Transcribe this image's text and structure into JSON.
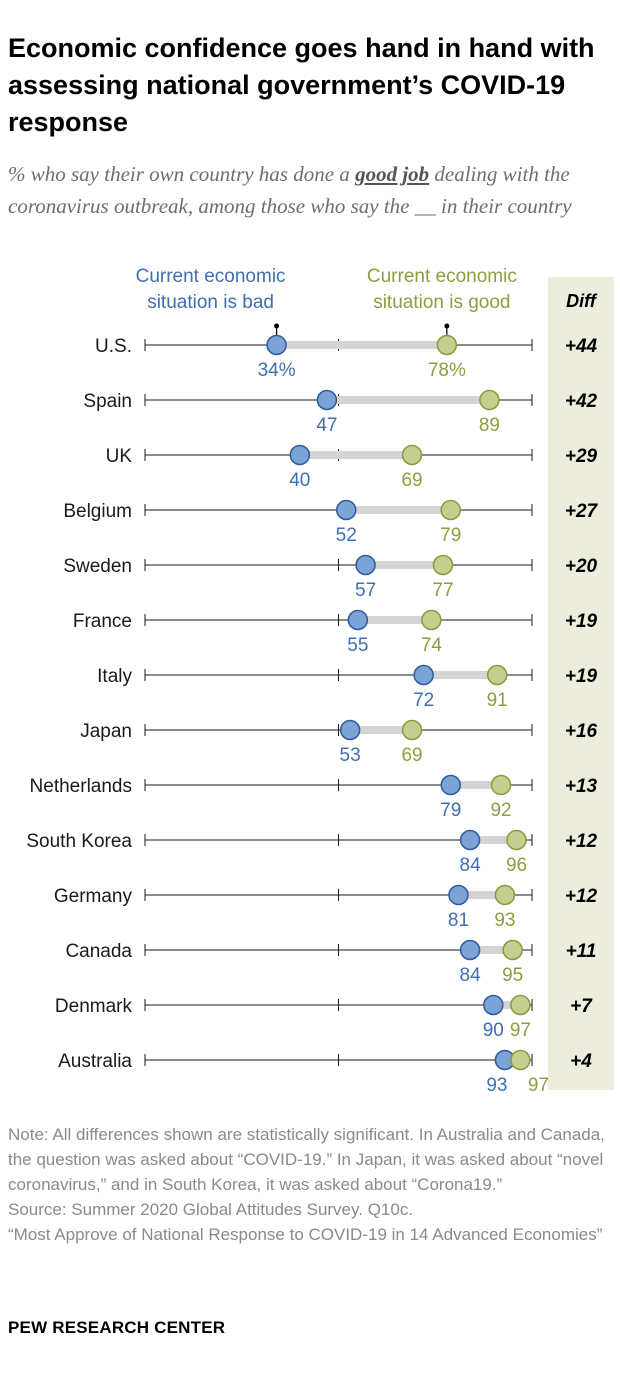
{
  "title": "Economic confidence goes hand in hand with assessing national government’s COVID-19 response",
  "subtitle": {
    "before": "% who say their own country has done a ",
    "emphasis": "good job",
    "after": " dealing with the coronavirus outbreak, among those who say the __ in their country"
  },
  "chart_data": {
    "type": "dot",
    "xlim": [
      0,
      100
    ],
    "grid": true,
    "legend_position": "top",
    "colors": {
      "bad": "#7ba3d6",
      "bad_stroke": "#2e5a9c",
      "good": "#c3cf8e",
      "good_stroke": "#8b9a3c",
      "connector": "#d4d4d4",
      "diff_bg": "#ededde"
    },
    "series": [
      {
        "name": "Current economic situation is bad",
        "legend_lines": [
          "Current economic",
          "situation is bad"
        ],
        "label_color": "#3f6fb0"
      },
      {
        "name": "Current economic situation is good",
        "legend_lines": [
          "Current economic",
          "situation is good"
        ],
        "label_color": "#8f9d3f"
      }
    ],
    "diff_header": "Diff",
    "first_row_suffix": "%",
    "rows": [
      {
        "country": "U.S.",
        "bad": 34,
        "good": 78,
        "diff": "+44"
      },
      {
        "country": "Spain",
        "bad": 47,
        "good": 89,
        "diff": "+42"
      },
      {
        "country": "UK",
        "bad": 40,
        "good": 69,
        "diff": "+29"
      },
      {
        "country": "Belgium",
        "bad": 52,
        "good": 79,
        "diff": "+27"
      },
      {
        "country": "Sweden",
        "bad": 57,
        "good": 77,
        "diff": "+20"
      },
      {
        "country": "France",
        "bad": 55,
        "good": 74,
        "diff": "+19"
      },
      {
        "country": "Italy",
        "bad": 72,
        "good": 91,
        "diff": "+19"
      },
      {
        "country": "Japan",
        "bad": 53,
        "good": 69,
        "diff": "+16"
      },
      {
        "country": "Netherlands",
        "bad": 79,
        "good": 92,
        "diff": "+13"
      },
      {
        "country": "South Korea",
        "bad": 84,
        "good": 96,
        "diff": "+12"
      },
      {
        "country": "Germany",
        "bad": 81,
        "good": 93,
        "diff": "+12"
      },
      {
        "country": "Canada",
        "bad": 84,
        "good": 95,
        "diff": "+11"
      },
      {
        "country": "Denmark",
        "bad": 90,
        "good": 97,
        "diff": "+7"
      },
      {
        "country": "Australia",
        "bad": 93,
        "good": 97,
        "diff": "+4"
      }
    ]
  },
  "notes": {
    "note": "Note: All differences shown are statistically significant. In Australia and Canada, the question was asked about “COVID-19.” In Japan, it was asked about “novel coronavirus,” and in South Korea, it was asked about “Corona19.”",
    "source": "Source: Summer 2020 Global Attitudes Survey. Q10c.",
    "report": "“Most Approve of National Response to COVID-19 in 14 Advanced Economies”"
  },
  "brand": "PEW RESEARCH CENTER"
}
